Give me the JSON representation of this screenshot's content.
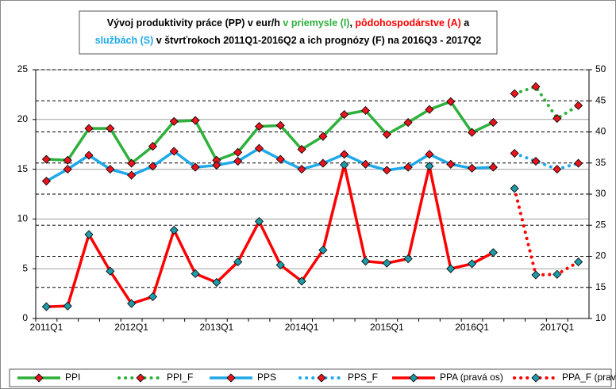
{
  "chart_data": {
    "type": "line",
    "title_lines": [
      [
        {
          "text": "Vývoj produktivity práce (PP) v eur/h ",
          "color": "#000000"
        },
        {
          "text": " v priemysle (I)",
          "color": "#2eb03c"
        },
        {
          "text": ", ",
          "color": "#000000"
        },
        {
          "text": "pôdohospodárstve (A)",
          "color": "#ff0000"
        },
        {
          "text": " a",
          "color": "#000000"
        }
      ],
      [
        {
          "text": "službách (S)",
          "color": "#1fa9e8"
        },
        {
          "text": " v štvrťrokoch 2011Q1-2016Q2  a ich prognózy (F) na 2016Q3 - 2017Q2",
          "color": "#000000"
        }
      ]
    ],
    "categories": [
      "2011Q1",
      null,
      null,
      null,
      "2012Q1",
      null,
      null,
      null,
      "2013Q1",
      null,
      null,
      null,
      "2014Q1",
      null,
      null,
      null,
      "2015Q1",
      null,
      null,
      null,
      "2016Q1",
      null,
      null,
      null,
      "2017Q1",
      null
    ],
    "series": [
      {
        "name": "PPI",
        "color": "#2eb03c",
        "marker_color": "#e8141e",
        "style": "solid",
        "axis": "y",
        "values": [
          16.0,
          15.9,
          19.1,
          19.1,
          15.6,
          17.3,
          19.8,
          19.9,
          15.9,
          16.7,
          19.3,
          19.4,
          17.0,
          18.3,
          20.5,
          20.9,
          18.5,
          19.7,
          21.0,
          21.8,
          18.7,
          19.7,
          null,
          null,
          null,
          null
        ]
      },
      {
        "name": "PPI_F",
        "color": "#2eb03c",
        "marker_color": "#e8141e",
        "style": "dotted",
        "axis": "y",
        "values": [
          null,
          null,
          null,
          null,
          null,
          null,
          null,
          null,
          null,
          null,
          null,
          null,
          null,
          null,
          null,
          null,
          null,
          null,
          null,
          null,
          null,
          null,
          22.6,
          23.3,
          20.1,
          21.4
        ]
      },
      {
        "name": "PPS",
        "color": "#1fa9e8",
        "marker_color": "#e8141e",
        "style": "solid",
        "axis": "y",
        "values": [
          13.8,
          15.0,
          16.4,
          15.0,
          14.4,
          15.3,
          16.8,
          15.2,
          15.4,
          15.8,
          17.1,
          16.0,
          15.0,
          15.6,
          16.5,
          15.5,
          14.9,
          15.2,
          16.5,
          15.5,
          15.1,
          15.2,
          null,
          null,
          null,
          null
        ]
      },
      {
        "name": "PPS_F",
        "color": "#1fa9e8",
        "marker_color": "#e8141e",
        "style": "dotted",
        "axis": "y",
        "values": [
          null,
          null,
          null,
          null,
          null,
          null,
          null,
          null,
          null,
          null,
          null,
          null,
          null,
          null,
          null,
          null,
          null,
          null,
          null,
          null,
          null,
          null,
          16.6,
          15.8,
          15.0,
          15.6
        ]
      },
      {
        "name": "PPA (pravá os)",
        "color": "#ff0000",
        "marker_color": "#1f9aa8",
        "style": "solid",
        "axis": "y2",
        "values": [
          11.9,
          12.0,
          23.5,
          17.6,
          12.4,
          13.5,
          24.2,
          17.2,
          15.8,
          19.1,
          25.6,
          18.6,
          16.0,
          21.0,
          34.7,
          19.2,
          18.9,
          19.6,
          34.5,
          18.0,
          18.8,
          20.6,
          null,
          null,
          null,
          null
        ]
      },
      {
        "name": "PPA_F (pravá os)",
        "color": "#ff0000",
        "marker_color": "#1f9aa8",
        "style": "dotted",
        "axis": "y2",
        "values": [
          null,
          null,
          null,
          null,
          null,
          null,
          null,
          null,
          null,
          null,
          null,
          null,
          null,
          null,
          null,
          null,
          null,
          null,
          null,
          null,
          null,
          null,
          30.9,
          17.0,
          17.1,
          19.1
        ]
      }
    ],
    "ylim": [
      0,
      25
    ],
    "yticks": [
      0,
      5,
      10,
      15,
      20,
      25
    ],
    "y2lim": [
      10,
      50
    ],
    "y2ticks": [
      10,
      15,
      20,
      25,
      30,
      35,
      40,
      45,
      50
    ],
    "grid": true,
    "grid2_dashed": true,
    "legend": "bottom"
  }
}
